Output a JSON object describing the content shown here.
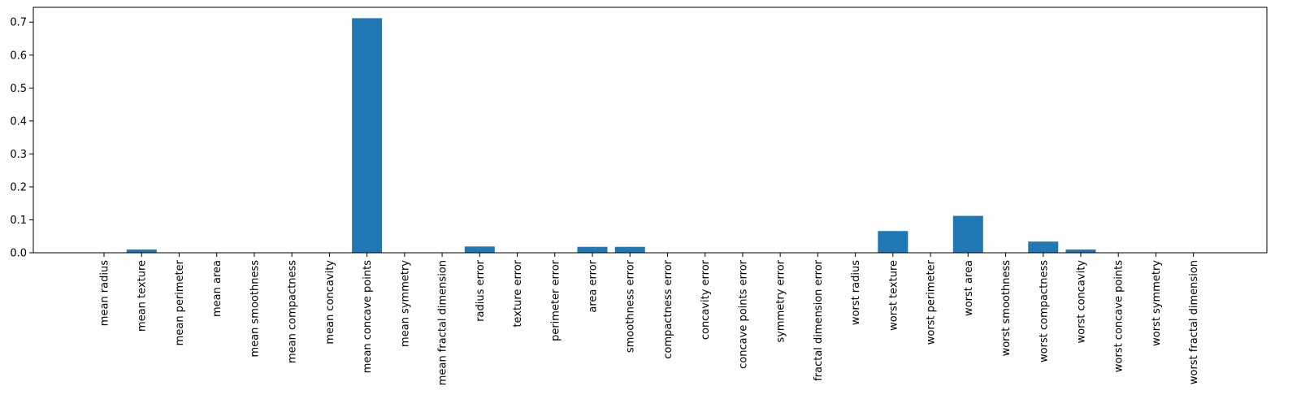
{
  "chart_data": {
    "type": "bar",
    "title": "",
    "xlabel": "",
    "ylabel": "",
    "ylim": [
      0,
      0.745
    ],
    "yticks": [
      "0.0",
      "0.1",
      "0.2",
      "0.3",
      "0.4",
      "0.5",
      "0.6",
      "0.7"
    ],
    "grid": false,
    "color": "#1f77b4",
    "categories": [
      "mean radius",
      "mean texture",
      "mean perimeter",
      "mean area",
      "mean smoothness",
      "mean compactness",
      "mean concavity",
      "mean concave points",
      "mean symmetry",
      "mean fractal dimension",
      "radius error",
      "texture error",
      "perimeter error",
      "area error",
      "smoothness error",
      "compactness error",
      "concavity error",
      "concave points error",
      "symmetry error",
      "fractal dimension error",
      "worst radius",
      "worst texture",
      "worst perimeter",
      "worst area",
      "worst smoothness",
      "worst compactness",
      "worst concavity",
      "worst concave points",
      "worst symmetry",
      "worst fractal dimension"
    ],
    "values": [
      0.0,
      0.01,
      0.0,
      0.0,
      0.0,
      0.0,
      0.0,
      0.712,
      0.0,
      0.0,
      0.019,
      0.0,
      0.0,
      0.018,
      0.018,
      0.0,
      0.0,
      0.0,
      0.0,
      0.0,
      0.0,
      0.066,
      0.0,
      0.112,
      0.0,
      0.034,
      0.01,
      0.0,
      0.0,
      0.0
    ]
  }
}
